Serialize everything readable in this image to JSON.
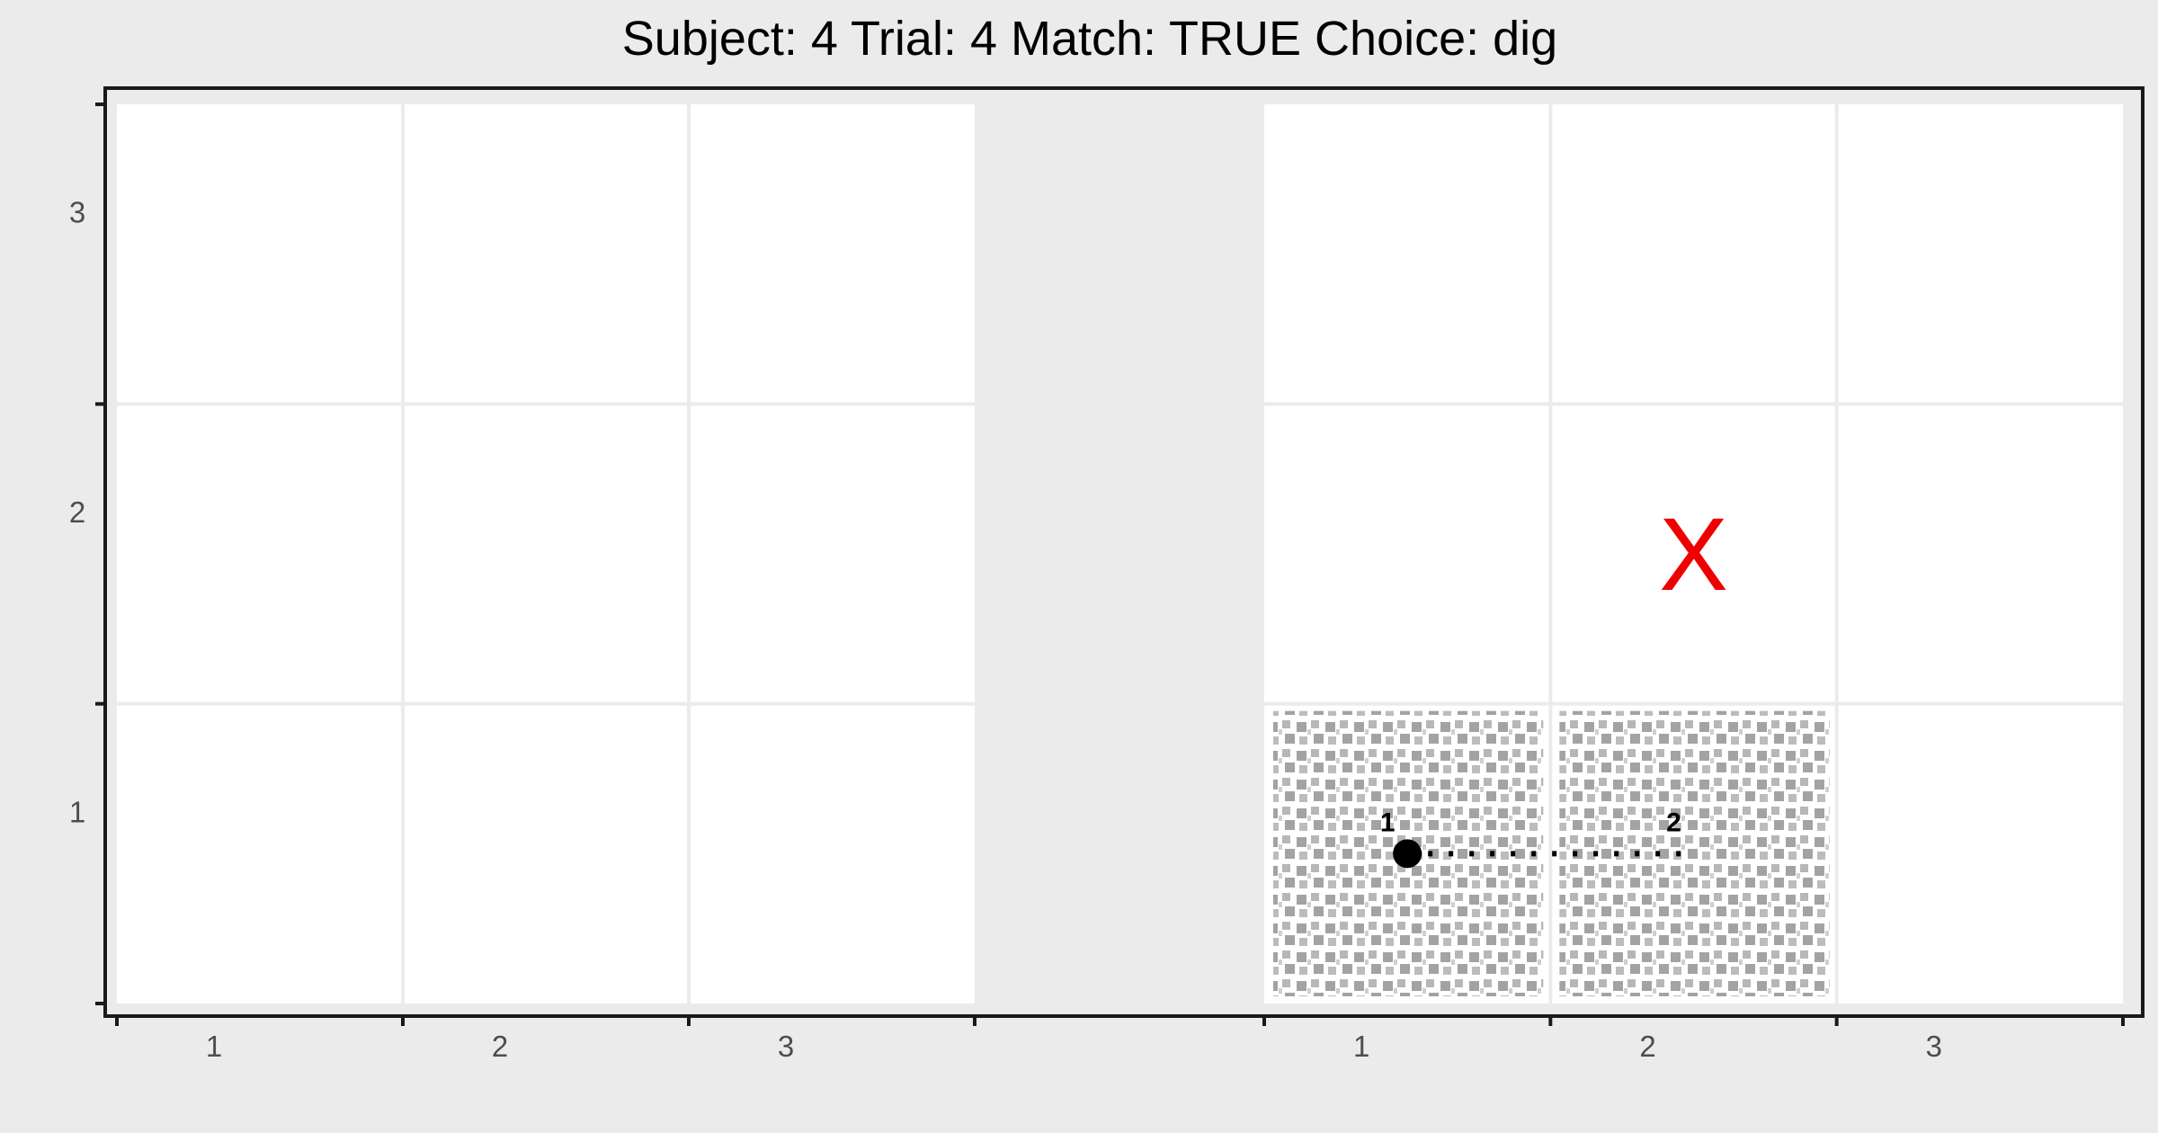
{
  "title": "Subject:  4  Trial:  4  Match: TRUE  Choice: dig",
  "chart_data": {
    "type": "scatter",
    "title": "Subject:  4  Trial:  4  Match: TRUE  Choice: dig",
    "xlabel": "",
    "ylabel": "",
    "panels": [
      {
        "name": "left",
        "x_ticks": [
          "1",
          "2",
          "3"
        ],
        "y_ticks": [
          "1",
          "2",
          "3"
        ],
        "textured_cells": [],
        "path": [],
        "target": null
      },
      {
        "name": "right",
        "x_ticks": [
          "1",
          "2",
          "3"
        ],
        "y_ticks": [
          "1",
          "2",
          "3"
        ],
        "textured_cells": [
          [
            1,
            1
          ],
          [
            2,
            1
          ]
        ],
        "path": [
          {
            "label": "1",
            "x": 1.0,
            "y": 1.0
          },
          {
            "label": "2",
            "x": 2.0,
            "y": 1.0
          }
        ],
        "start_marker": "circle",
        "path_style": "dotted",
        "target": {
          "label": "X",
          "x": 2.0,
          "y": 2.0,
          "color": "#ee0000"
        }
      }
    ],
    "x_range": [
      0.5,
      3.5
    ],
    "y_range": [
      0.5,
      3.5
    ],
    "grid": true,
    "colors": {
      "panel_background": "#ffffff",
      "plot_background": "#ebebeb",
      "texture_fill": "#999999",
      "point": "#000000",
      "path": "#000000",
      "target": "#ee0000"
    }
  }
}
